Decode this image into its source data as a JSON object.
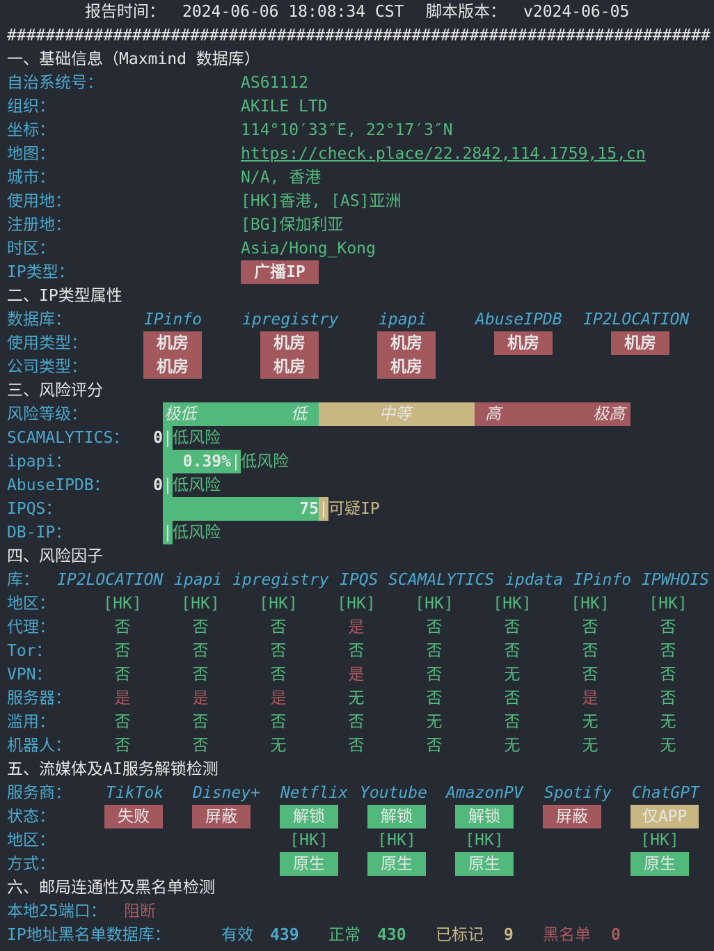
{
  "colors": {
    "label": "#4aa8cc",
    "value": "#52b97c",
    "bad": "#a3585e",
    "warn": "#c8b783",
    "text": "#e6e6e6",
    "background": "#262a33"
  },
  "header": {
    "report_time_label": "报告时间：",
    "report_time": "2024-06-06 18:08:34 CST",
    "version_label": "脚本版本：",
    "version": "v2024-06-05"
  },
  "separator": "#########################################################################",
  "basic": {
    "title": "一、基础信息（Maxmind 数据库）",
    "rows": [
      {
        "label": "自治系统号：",
        "value": "AS61112"
      },
      {
        "label": "组织：",
        "value": "AKILE LTD"
      },
      {
        "label": "坐标：",
        "value": "114°10′33″E, 22°17′3″N"
      },
      {
        "label": "地图：",
        "value": "https://check.place/22.2842,114.1759,15,cn"
      },
      {
        "label": "城市：",
        "value": "N/A, 香港"
      },
      {
        "label": "使用地：",
        "value": "[HK]香港, [AS]亚洲"
      },
      {
        "label": "注册地：",
        "value": "[BG]保加利亚"
      },
      {
        "label": "时区：",
        "value": "Asia/Hong_Kong"
      }
    ],
    "ip_type_label": "IP类型：",
    "ip_type": "广播IP"
  },
  "iptype": {
    "title": "二、IP类型属性",
    "db_label": "数据库：",
    "dbs": [
      "IPinfo",
      "ipregistry",
      "ipapi",
      "AbuseIPDB",
      "IP2LOCATION"
    ],
    "usage_label": "使用类型：",
    "usage": [
      "机房",
      "机房",
      "机房",
      "机房",
      "机房"
    ],
    "company_label": "公司类型：",
    "company": [
      "机房",
      "机房",
      "机房"
    ]
  },
  "risk": {
    "title": "三、风险评分",
    "level_label": "风险等级：",
    "levels": [
      "极低",
      "低",
      "中等",
      "高",
      "极高"
    ],
    "scores": [
      {
        "label": "SCAMALYTICS：",
        "score": "0",
        "verdict": "低风险",
        "level": "low",
        "value_pct": 0
      },
      {
        "label": "ipapi：",
        "score": "0.39%",
        "verdict": "低风险",
        "level": "low",
        "value_pct": 0.39
      },
      {
        "label": "AbuseIPDB：",
        "score": "0",
        "verdict": "低风险",
        "level": "low",
        "value_pct": 0
      },
      {
        "label": "IPQS：",
        "score": "75",
        "verdict": "可疑IP",
        "level": "suspicious",
        "value_pct": 75
      },
      {
        "label": "DB-IP：",
        "score": "",
        "verdict": "低风险",
        "level": "low",
        "value_pct": 0
      }
    ]
  },
  "factors": {
    "title": "四、风险因子",
    "lib_label": "库：",
    "libs": [
      "IP2LOCATION",
      "ipapi",
      "ipregistry",
      "IPQS",
      "SCAMALYTICS",
      "ipdata",
      "IPinfo",
      "IPWHOIS"
    ],
    "rows": [
      {
        "label": "地区：",
        "values": [
          "[HK]",
          "[HK]",
          "[HK]",
          "[HK]",
          "[HK]",
          "[HK]",
          "[HK]",
          "[HK]"
        ]
      },
      {
        "label": "代理：",
        "values": [
          "否",
          "否",
          "否",
          "是",
          "否",
          "否",
          "否",
          "否"
        ]
      },
      {
        "label": "Tor：",
        "values": [
          "否",
          "否",
          "否",
          "否",
          "否",
          "否",
          "否",
          "否"
        ]
      },
      {
        "label": "VPN：",
        "values": [
          "否",
          "否",
          "否",
          "是",
          "否",
          "无",
          "否",
          "否"
        ]
      },
      {
        "label": "服务器：",
        "values": [
          "是",
          "是",
          "是",
          "无",
          "否",
          "否",
          "是",
          "否"
        ]
      },
      {
        "label": "滥用：",
        "values": [
          "否",
          "否",
          "否",
          "否",
          "无",
          "否",
          "无",
          "无"
        ]
      },
      {
        "label": "机器人：",
        "values": [
          "否",
          "否",
          "无",
          "否",
          "否",
          "无",
          "无",
          "无"
        ]
      }
    ]
  },
  "streaming": {
    "title": "五、流媒体及AI服务解锁检测",
    "service_label": "服务商：",
    "status_label": "状态：",
    "region_label": "地区：",
    "method_label": "方式：",
    "services": [
      {
        "name": "TikTok",
        "status": "失败",
        "state": "fail",
        "region": "",
        "method": ""
      },
      {
        "name": "Disney+",
        "status": "屏蔽",
        "state": "blocked",
        "region": "",
        "method": ""
      },
      {
        "name": "Netflix",
        "status": "解锁",
        "state": "unlocked",
        "region": "[HK]",
        "method": "原生"
      },
      {
        "name": "Youtube",
        "status": "解锁",
        "state": "unlocked",
        "region": "[HK]",
        "method": "原生"
      },
      {
        "name": "AmazonPV",
        "status": "解锁",
        "state": "unlocked",
        "region": "[HK]",
        "method": "原生"
      },
      {
        "name": "Spotify",
        "status": "屏蔽",
        "state": "blocked",
        "region": "",
        "method": ""
      },
      {
        "name": "ChatGPT",
        "status": "仅APP",
        "state": "app",
        "region": "[HK]",
        "method": "原生"
      }
    ]
  },
  "mail": {
    "title": "六、邮局连通性及黑名单检测",
    "port_label": "本地25端口：",
    "port_status": "阻断",
    "bl_label": "IP地址黑名单数据库：",
    "valid_label": "有效",
    "valid": "439",
    "normal_label": "正常",
    "normal": "430",
    "marked_label": "已标记",
    "marked": "9",
    "black_label": "黑名单",
    "black": "0"
  }
}
